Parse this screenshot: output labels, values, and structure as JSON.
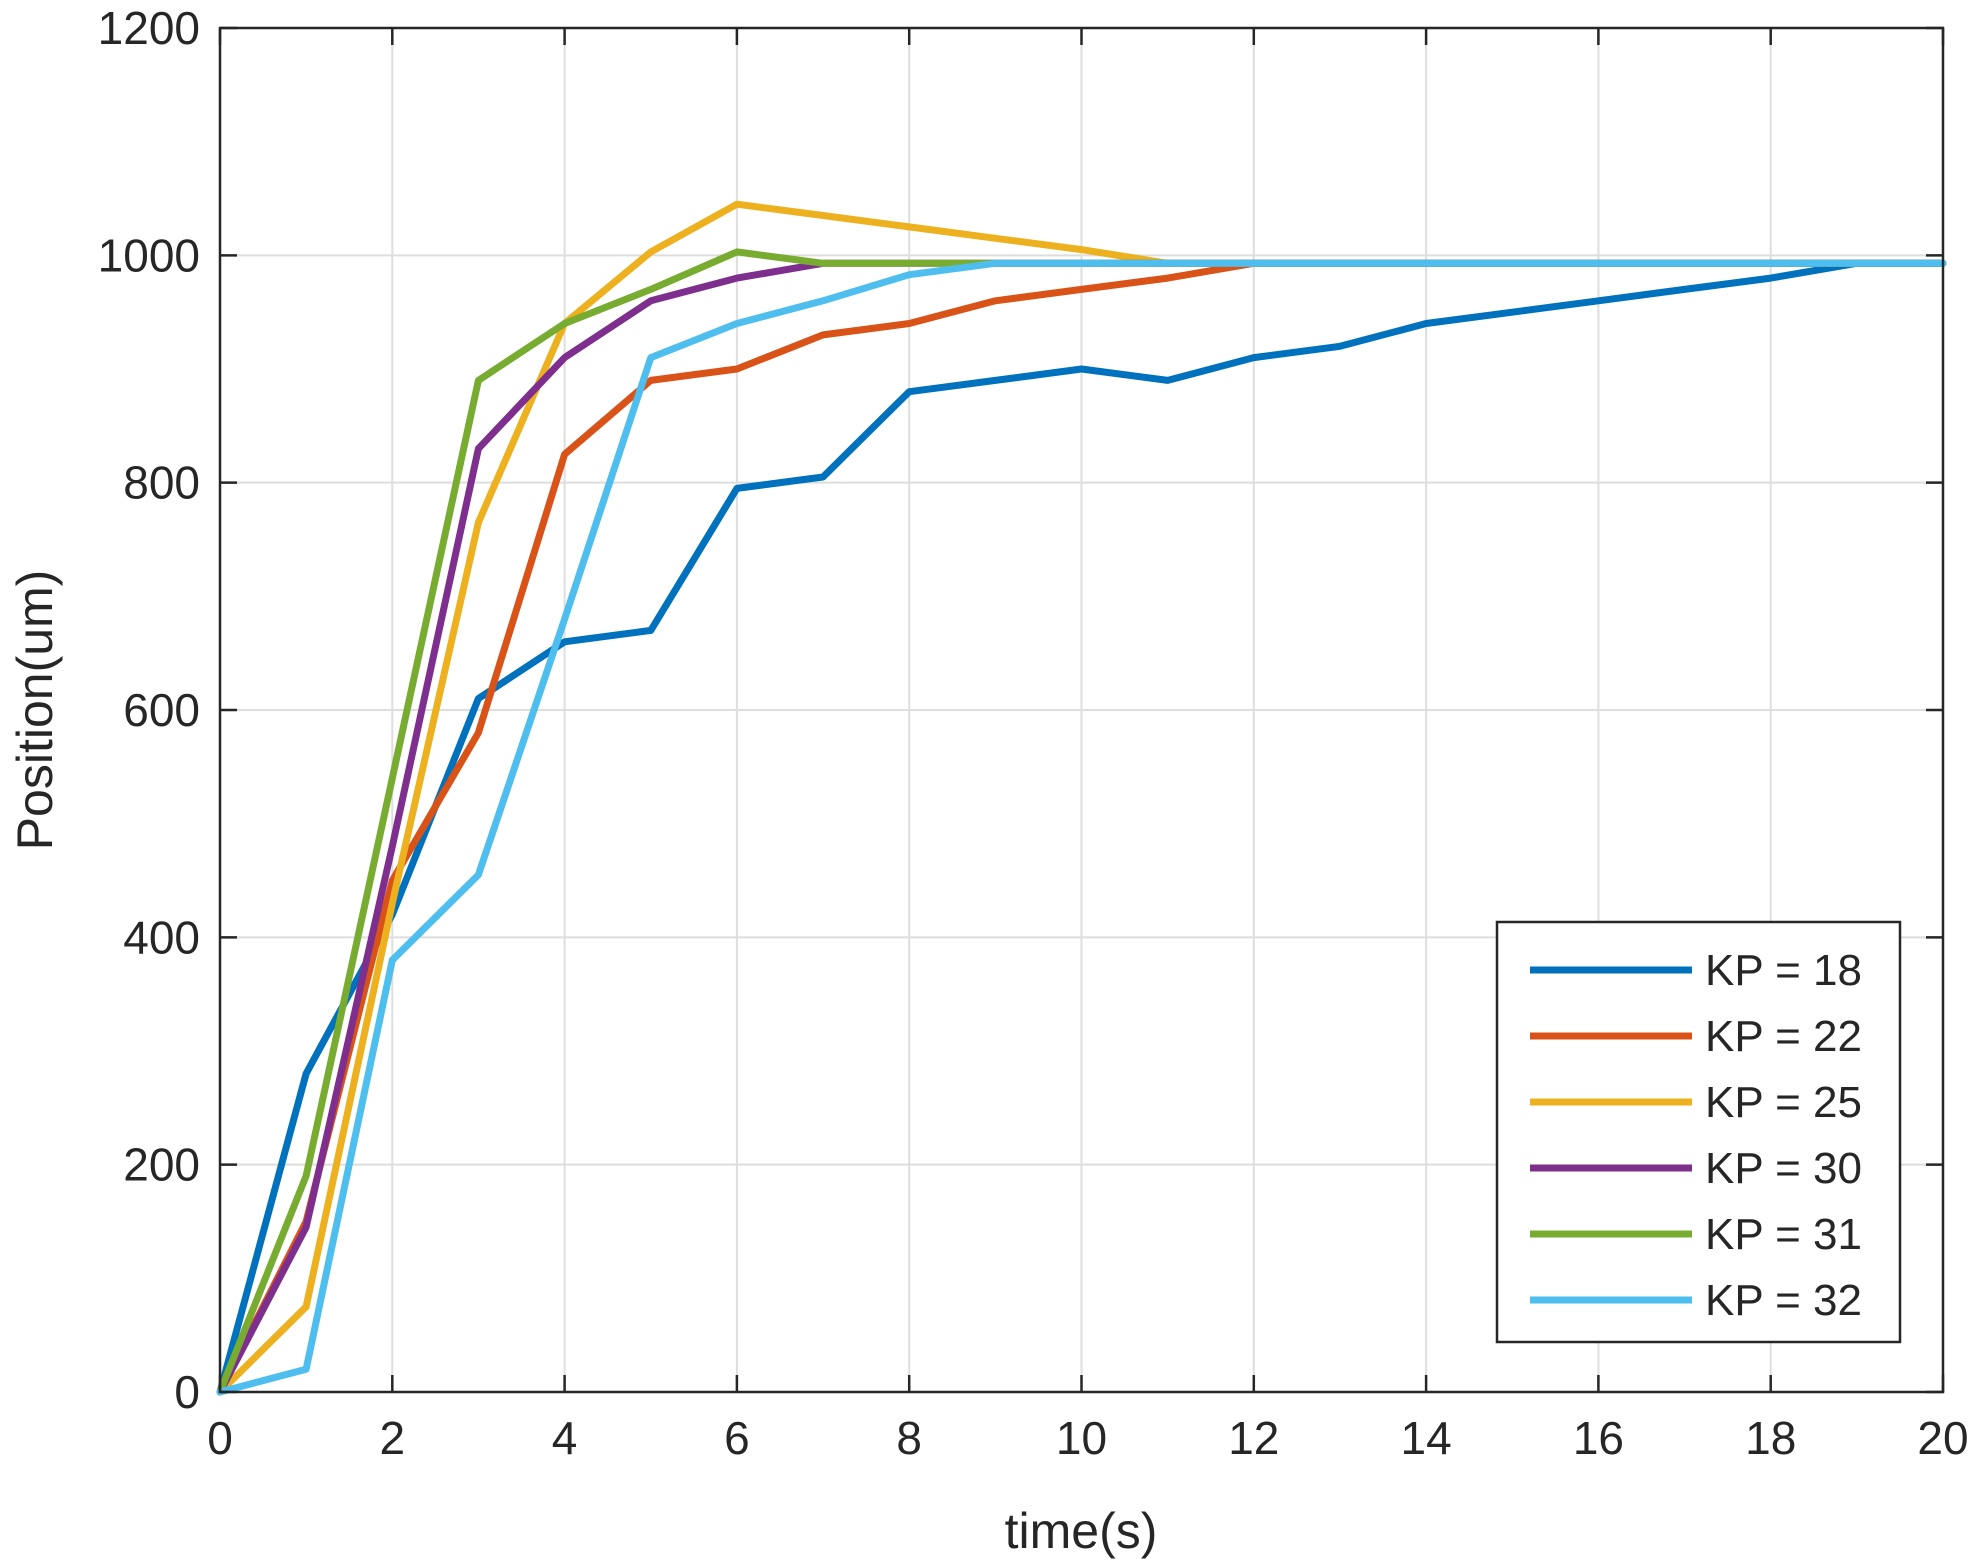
{
  "chart_data": {
    "type": "line",
    "title": "",
    "xlabel": "time(s)",
    "ylabel": "Position(um)",
    "xlim": [
      0,
      20
    ],
    "ylim": [
      0,
      1200
    ],
    "xticks": [
      0,
      2,
      4,
      6,
      8,
      10,
      12,
      14,
      16,
      18,
      20
    ],
    "yticks": [
      0,
      200,
      400,
      600,
      800,
      1000,
      1200
    ],
    "grid": true,
    "legend_position": "bottom-right",
    "x": [
      0,
      1,
      2,
      3,
      4,
      5,
      6,
      7,
      8,
      9,
      10,
      11,
      12,
      13,
      14,
      15,
      16,
      17,
      18,
      19,
      20
    ],
    "series": [
      {
        "name": "KP = 18",
        "color": "#0072BD",
        "values": [
          0,
          280,
          420,
          610,
          660,
          670,
          795,
          805,
          880,
          890,
          900,
          890,
          910,
          920,
          940,
          950,
          960,
          970,
          980,
          993,
          993
        ]
      },
      {
        "name": "KP = 22",
        "color": "#D95319",
        "values": [
          0,
          150,
          450,
          580,
          825,
          890,
          900,
          930,
          940,
          960,
          970,
          980,
          993,
          993,
          993,
          993,
          993,
          993,
          993,
          993,
          993
        ]
      },
      {
        "name": "KP = 25",
        "color": "#EDB120",
        "values": [
          0,
          75,
          430,
          765,
          940,
          1003,
          1045,
          1035,
          1025,
          1015,
          1005,
          993,
          993,
          993,
          993,
          993,
          993,
          993,
          993,
          993,
          993
        ]
      },
      {
        "name": "KP = 30",
        "color": "#7E2F8E",
        "values": [
          0,
          145,
          480,
          830,
          910,
          960,
          980,
          993,
          993,
          993,
          993,
          993,
          993,
          993,
          993,
          993,
          993,
          993,
          993,
          993,
          993
        ]
      },
      {
        "name": "KP = 31",
        "color": "#77AC30",
        "values": [
          0,
          190,
          540,
          890,
          940,
          970,
          1003,
          993,
          993,
          993,
          993,
          993,
          993,
          993,
          993,
          993,
          993,
          993,
          993,
          993,
          993
        ]
      },
      {
        "name": "KP = 32",
        "color": "#4DBEEE",
        "values": [
          0,
          20,
          380,
          455,
          680,
          910,
          940,
          960,
          983,
          993,
          993,
          993,
          993,
          993,
          993,
          993,
          993,
          993,
          993,
          993,
          993
        ]
      }
    ]
  }
}
